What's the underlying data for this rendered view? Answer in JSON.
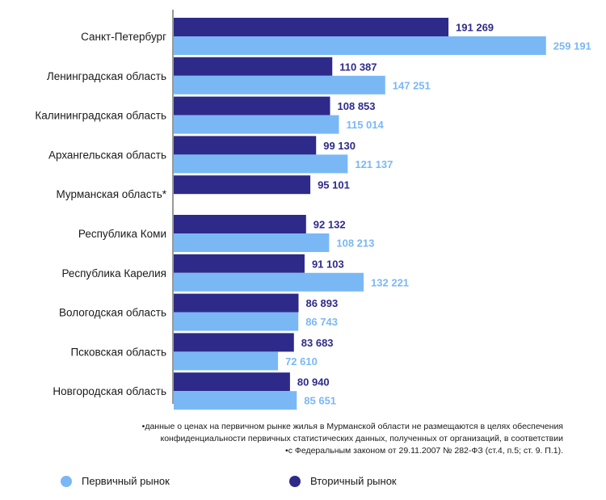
{
  "chart_data": {
    "type": "bar",
    "orientation": "horizontal",
    "categories": [
      "Санкт-Петербург",
      "Ленинградская область",
      "Калининградская область",
      "Архангельская область",
      "Мурманская область*",
      "Республика Коми",
      "Республика Карелия",
      "Вологодская область",
      "Псковская область",
      "Новгородская область"
    ],
    "series": [
      {
        "name": "Вторичный рынок",
        "color": "#2e2a8a",
        "values": [
          191269,
          110387,
          108853,
          99130,
          95101,
          92132,
          91103,
          86893,
          83683,
          80940
        ],
        "labels": [
          "191 269",
          "110 387",
          "108 853",
          "99 130",
          "95 101",
          "92 132",
          "91 103",
          "86 893",
          "83 683",
          "80 940"
        ]
      },
      {
        "name": "Первичный рынок",
        "color": "#7ab8f5",
        "values": [
          259191,
          147251,
          115014,
          121137,
          null,
          108213,
          132221,
          86743,
          72610,
          85651
        ],
        "labels": [
          "259 191",
          "147 251",
          "115 014",
          "121 137",
          "",
          "108 213",
          "132 221",
          "86 743",
          "72 610",
          "85 651"
        ]
      }
    ],
    "xlim": [
      0,
      270000
    ],
    "grid": false,
    "legend_placement": "bottom"
  },
  "footnote": {
    "line1": "•данные  о ценах на первичном рынке жилья в Мурманской области не размещаются в целях обеспечения",
    "line2": "конфиденциальности первичных статистических данных, полученных от организаций, в соответствии",
    "line3": "•с Федеральным законом от 29.11.2007 № 282-ФЗ (ст.4, п.5; ст. 9. П.1)."
  },
  "legend": {
    "primary_label": "Первичный рынок",
    "primary_color": "#7ab8f5",
    "secondary_label": "Вторичный рынок",
    "secondary_color": "#2e2a8a"
  }
}
